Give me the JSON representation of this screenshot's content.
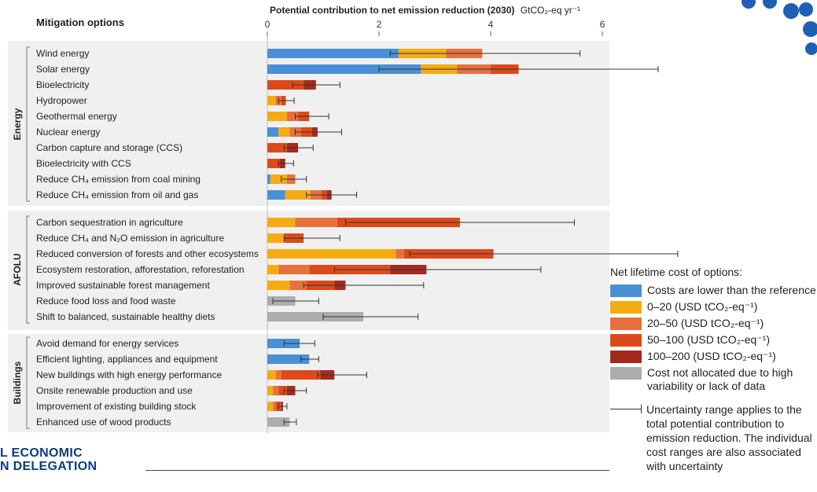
{
  "header": {
    "options_title": "Mitigation options",
    "axis_title_main": "Potential contribution to net emission reduction (2030)",
    "axis_title_unit": "GtCO₂-eq yr⁻¹"
  },
  "colors": {
    "neg": "#4a90d6",
    "c0_20": "#f5ac12",
    "c20_50": "#e8703c",
    "c50_100": "#dc4a1b",
    "c100_200": "#a52a1e",
    "na": "#adadad",
    "panel": "#f0f0f0"
  },
  "legend": {
    "title": "Net lifetime cost of options:",
    "items": [
      {
        "key": "neg",
        "label": "Costs are lower than the reference"
      },
      {
        "key": "c0_20",
        "label": "0–20 (USD tCO₂-eq⁻¹)"
      },
      {
        "key": "c20_50",
        "label": "20–50 (USD tCO₂-eq⁻¹)"
      },
      {
        "key": "c50_100",
        "label": "50–100 (USD tCO₂-eq⁻¹)"
      },
      {
        "key": "c100_200",
        "label": "100–200 (USD tCO₂-eq⁻¹)"
      },
      {
        "key": "na",
        "label": "Cost not allocated due to high variability or lack of data"
      }
    ],
    "uncertainty": "Uncertainty range applies to the total potential contribution to emission reduction. The individual cost ranges are also associated with uncertainty"
  },
  "footer": {
    "brand_line1": "L ECONOMIC",
    "brand_line2": "N DELEGATION"
  },
  "chart_data": {
    "type": "bar",
    "orientation": "horizontal",
    "stacked": true,
    "xlim": [
      0,
      6
    ],
    "xticks": [
      0,
      2,
      4,
      6
    ],
    "xlabel": "Potential contribution to net emission reduction (2030) GtCO₂-eq yr⁻¹",
    "series_order": [
      "neg",
      "c0_20",
      "c20_50",
      "c50_100",
      "c100_200",
      "na"
    ],
    "groups": [
      {
        "name": "Energy",
        "options": [
          {
            "label": "Wind energy",
            "segments": {
              "neg": 2.35,
              "c0_20": 0.85,
              "c20_50": 0.65
            },
            "range": [
              2.2,
              5.6
            ]
          },
          {
            "label": "Solar energy",
            "segments": {
              "neg": 2.75,
              "c0_20": 0.65,
              "c20_50": 0.6,
              "c50_100": 0.5
            },
            "range": [
              2.0,
              7.0
            ]
          },
          {
            "label": "Bioelectricity",
            "segments": {
              "c50_100": 0.65,
              "c100_200": 0.22
            },
            "range": [
              0.45,
              1.3
            ]
          },
          {
            "label": "Hydropower",
            "segments": {
              "c0_20": 0.15,
              "c20_50": 0.1,
              "c50_100": 0.08
            },
            "range": [
              0.2,
              0.48
            ]
          },
          {
            "label": "Geothermal energy",
            "segments": {
              "c0_20": 0.35,
              "c20_50": 0.2,
              "c50_100": 0.2
            },
            "range": [
              0.5,
              1.1
            ]
          },
          {
            "label": "Nuclear energy",
            "segments": {
              "neg": 0.2,
              "c0_20": 0.2,
              "c20_50": 0.2,
              "c50_100": 0.2,
              "c100_200": 0.1
            },
            "range": [
              0.5,
              1.33
            ]
          },
          {
            "label": "Carbon capture and storage (CCS)",
            "segments": {
              "c50_100": 0.35,
              "c100_200": 0.2
            },
            "range": [
              0.3,
              0.82
            ]
          },
          {
            "label": "Bioelectricity with CCS",
            "segments": {
              "c50_100": 0.22,
              "c100_200": 0.1
            },
            "range": [
              0.2,
              0.47
            ]
          },
          {
            "label": "Reduce CH₄ emission from coal mining",
            "segments": {
              "neg": 0.05,
              "c0_20": 0.3,
              "c20_50": 0.15
            },
            "range": [
              0.25,
              0.7
            ]
          },
          {
            "label": "Reduce CH₄ emission from oil and gas",
            "segments": {
              "neg": 0.32,
              "c0_20": 0.45,
              "c20_50": 0.2,
              "c50_100": 0.1,
              "c100_200": 0.08
            },
            "range": [
              0.7,
              1.6
            ]
          }
        ]
      },
      {
        "name": "AFOLU",
        "options": [
          {
            "label": "Carbon sequestration in agriculture",
            "segments": {
              "c0_20": 0.5,
              "c20_50": 0.75,
              "c50_100": 2.2
            },
            "range": [
              1.4,
              5.5
            ]
          },
          {
            "label": "Reduce CH₄ and N₂O emission in agriculture",
            "segments": {
              "c0_20": 0.3,
              "c50_100": 0.35
            },
            "range": [
              0.3,
              1.3
            ]
          },
          {
            "label": "Reduced conversion of forests and other ecosystems",
            "segments": {
              "c0_20": 2.3,
              "c20_50": 0.15,
              "c50_100": 1.6
            },
            "range": [
              2.55,
              7.35
            ]
          },
          {
            "label": "Ecosystem restoration, afforestation, reforestation",
            "segments": {
              "c0_20": 0.2,
              "c20_50": 0.55,
              "c50_100": 1.45,
              "c100_200": 0.65
            },
            "range": [
              1.2,
              4.9
            ]
          },
          {
            "label": "Improved sustainable forest management",
            "segments": {
              "c0_20": 0.4,
              "c20_50": 0.3,
              "c50_100": 0.5,
              "c100_200": 0.2
            },
            "range": [
              0.65,
              2.8
            ]
          },
          {
            "label": "Reduce food loss and food waste",
            "segments": {
              "na": 0.5
            },
            "range": [
              0.1,
              0.92
            ]
          },
          {
            "label": "Shift to balanced, sustainable healthy diets",
            "segments": {
              "na": 1.72
            },
            "range": [
              1.0,
              2.7
            ]
          }
        ]
      },
      {
        "name": "Buildings",
        "options": [
          {
            "label": "Avoid demand for energy services",
            "segments": {
              "neg": 0.58
            },
            "range": [
              0.3,
              0.85
            ]
          },
          {
            "label": "Efficient lighting, appliances and equipment",
            "segments": {
              "neg": 0.75
            },
            "range": [
              0.6,
              0.92
            ]
          },
          {
            "label": "New buildings with high energy performance",
            "segments": {
              "c0_20": 0.15,
              "c20_50": 0.1,
              "c50_100": 0.7,
              "c100_200": 0.25
            },
            "range": [
              0.9,
              1.78
            ]
          },
          {
            "label": "Onsite renewable production and use",
            "segments": {
              "c0_20": 0.1,
              "c20_50": 0.1,
              "c50_100": 0.15,
              "c100_200": 0.15
            },
            "range": [
              0.3,
              0.7
            ]
          },
          {
            "label": "Improvement of existing building stock",
            "segments": {
              "c0_20": 0.1,
              "c20_50": 0.05,
              "c50_100": 0.1,
              "c100_200": 0.03
            },
            "range": [
              0.2,
              0.35
            ]
          },
          {
            "label": "Enhanced use of wood products",
            "segments": {
              "na": 0.4
            },
            "range": [
              0.3,
              0.52
            ]
          }
        ]
      }
    ]
  }
}
